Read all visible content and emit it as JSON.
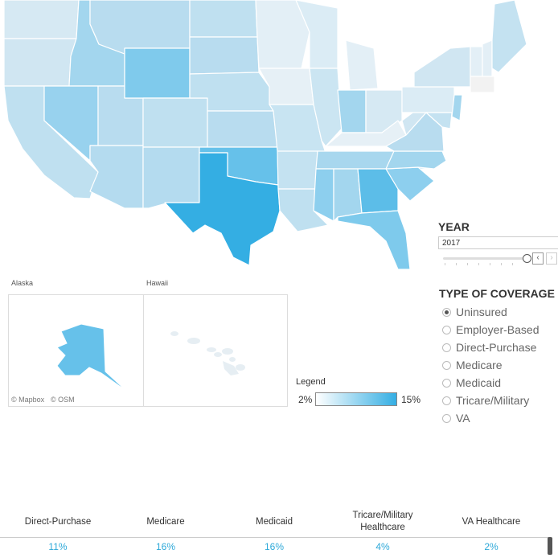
{
  "map": {
    "insets": {
      "alaska_label": "Alaska",
      "hawaii_label": "Hawaii"
    },
    "attribution": {
      "mapbox": "© Mapbox",
      "osm": "© OSM"
    },
    "legend": {
      "title": "Legend",
      "min_label": "2%",
      "max_label": "15%",
      "color_low": "#ffffff",
      "color_high": "#34aee3"
    }
  },
  "year_control": {
    "title": "YEAR",
    "selected": "2017",
    "prev_label": "‹",
    "next_label": "›"
  },
  "coverage_control": {
    "title": "TYPE OF COVERAGE",
    "options": [
      {
        "label": "Uninsured",
        "selected": true
      },
      {
        "label": "Employer-Based",
        "selected": false
      },
      {
        "label": "Direct-Purchase",
        "selected": false
      },
      {
        "label": "Medicare",
        "selected": false
      },
      {
        "label": "Medicaid",
        "selected": false
      },
      {
        "label": "Tricare/Military",
        "selected": false
      },
      {
        "label": "VA",
        "selected": false
      }
    ]
  },
  "summary": {
    "columns": [
      {
        "header": "Direct-Purchase",
        "value": "11%"
      },
      {
        "header": "Medicare",
        "value": "16%"
      },
      {
        "header": "Medicaid",
        "value": "16%"
      },
      {
        "header": "Tricare/Military Healthcare",
        "value": "4%"
      },
      {
        "header": "VA Healthcare",
        "value": "2%"
      }
    ]
  }
}
